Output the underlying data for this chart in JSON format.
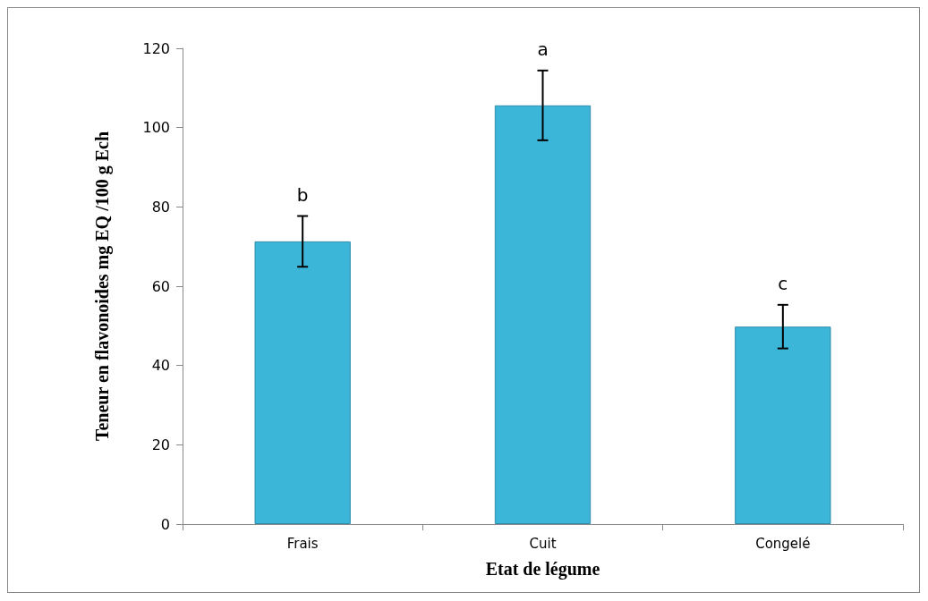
{
  "chart_data": {
    "type": "bar",
    "xlabel": "Etat de légume",
    "ylabel": "Teneur en flavonoides mg EQ /100 g Ech",
    "categories": [
      "Frais",
      "Cuit",
      "Congelé"
    ],
    "values": [
      71.3,
      105.6,
      49.8
    ],
    "errors": [
      6.4,
      8.8,
      5.5
    ],
    "color": "#3bb6d9",
    "ylim": [
      0,
      120
    ],
    "yticks": [
      0,
      20,
      40,
      60,
      80,
      100,
      120
    ],
    "grid": false,
    "annotations": [
      "b",
      "a",
      "c"
    ]
  }
}
